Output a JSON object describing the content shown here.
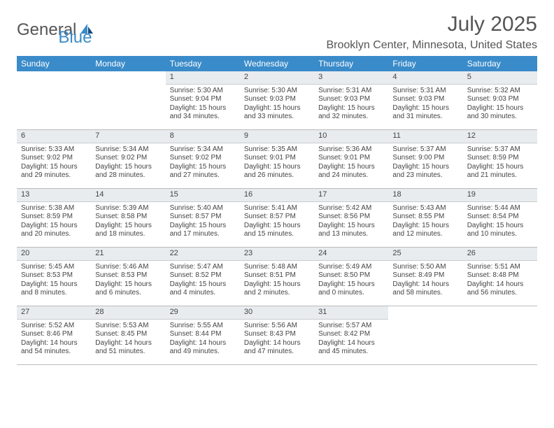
{
  "brand": {
    "text1": "General",
    "text2": "Blue",
    "color1": "#555555",
    "color2": "#3a8bc9"
  },
  "header": {
    "month_title": "July 2025",
    "location": "Brooklyn Center, Minnesota, United States"
  },
  "style": {
    "header_bg": "#3a8bc9",
    "header_fg": "#ffffff",
    "daynum_bg": "#e8ecef",
    "border_color": "#bbbbbb",
    "body_fontsize": 10,
    "title_fontsize": 30
  },
  "day_names": [
    "Sunday",
    "Monday",
    "Tuesday",
    "Wednesday",
    "Thursday",
    "Friday",
    "Saturday"
  ],
  "first_weekday_index": 2,
  "days": [
    {
      "n": 1,
      "sunrise": "5:30 AM",
      "sunset": "9:04 PM",
      "daylight": "15 hours and 34 minutes."
    },
    {
      "n": 2,
      "sunrise": "5:30 AM",
      "sunset": "9:03 PM",
      "daylight": "15 hours and 33 minutes."
    },
    {
      "n": 3,
      "sunrise": "5:31 AM",
      "sunset": "9:03 PM",
      "daylight": "15 hours and 32 minutes."
    },
    {
      "n": 4,
      "sunrise": "5:31 AM",
      "sunset": "9:03 PM",
      "daylight": "15 hours and 31 minutes."
    },
    {
      "n": 5,
      "sunrise": "5:32 AM",
      "sunset": "9:03 PM",
      "daylight": "15 hours and 30 minutes."
    },
    {
      "n": 6,
      "sunrise": "5:33 AM",
      "sunset": "9:02 PM",
      "daylight": "15 hours and 29 minutes."
    },
    {
      "n": 7,
      "sunrise": "5:34 AM",
      "sunset": "9:02 PM",
      "daylight": "15 hours and 28 minutes."
    },
    {
      "n": 8,
      "sunrise": "5:34 AM",
      "sunset": "9:02 PM",
      "daylight": "15 hours and 27 minutes."
    },
    {
      "n": 9,
      "sunrise": "5:35 AM",
      "sunset": "9:01 PM",
      "daylight": "15 hours and 26 minutes."
    },
    {
      "n": 10,
      "sunrise": "5:36 AM",
      "sunset": "9:01 PM",
      "daylight": "15 hours and 24 minutes."
    },
    {
      "n": 11,
      "sunrise": "5:37 AM",
      "sunset": "9:00 PM",
      "daylight": "15 hours and 23 minutes."
    },
    {
      "n": 12,
      "sunrise": "5:37 AM",
      "sunset": "8:59 PM",
      "daylight": "15 hours and 21 minutes."
    },
    {
      "n": 13,
      "sunrise": "5:38 AM",
      "sunset": "8:59 PM",
      "daylight": "15 hours and 20 minutes."
    },
    {
      "n": 14,
      "sunrise": "5:39 AM",
      "sunset": "8:58 PM",
      "daylight": "15 hours and 18 minutes."
    },
    {
      "n": 15,
      "sunrise": "5:40 AM",
      "sunset": "8:57 PM",
      "daylight": "15 hours and 17 minutes."
    },
    {
      "n": 16,
      "sunrise": "5:41 AM",
      "sunset": "8:57 PM",
      "daylight": "15 hours and 15 minutes."
    },
    {
      "n": 17,
      "sunrise": "5:42 AM",
      "sunset": "8:56 PM",
      "daylight": "15 hours and 13 minutes."
    },
    {
      "n": 18,
      "sunrise": "5:43 AM",
      "sunset": "8:55 PM",
      "daylight": "15 hours and 12 minutes."
    },
    {
      "n": 19,
      "sunrise": "5:44 AM",
      "sunset": "8:54 PM",
      "daylight": "15 hours and 10 minutes."
    },
    {
      "n": 20,
      "sunrise": "5:45 AM",
      "sunset": "8:53 PM",
      "daylight": "15 hours and 8 minutes."
    },
    {
      "n": 21,
      "sunrise": "5:46 AM",
      "sunset": "8:53 PM",
      "daylight": "15 hours and 6 minutes."
    },
    {
      "n": 22,
      "sunrise": "5:47 AM",
      "sunset": "8:52 PM",
      "daylight": "15 hours and 4 minutes."
    },
    {
      "n": 23,
      "sunrise": "5:48 AM",
      "sunset": "8:51 PM",
      "daylight": "15 hours and 2 minutes."
    },
    {
      "n": 24,
      "sunrise": "5:49 AM",
      "sunset": "8:50 PM",
      "daylight": "15 hours and 0 minutes."
    },
    {
      "n": 25,
      "sunrise": "5:50 AM",
      "sunset": "8:49 PM",
      "daylight": "14 hours and 58 minutes."
    },
    {
      "n": 26,
      "sunrise": "5:51 AM",
      "sunset": "8:48 PM",
      "daylight": "14 hours and 56 minutes."
    },
    {
      "n": 27,
      "sunrise": "5:52 AM",
      "sunset": "8:46 PM",
      "daylight": "14 hours and 54 minutes."
    },
    {
      "n": 28,
      "sunrise": "5:53 AM",
      "sunset": "8:45 PM",
      "daylight": "14 hours and 51 minutes."
    },
    {
      "n": 29,
      "sunrise": "5:55 AM",
      "sunset": "8:44 PM",
      "daylight": "14 hours and 49 minutes."
    },
    {
      "n": 30,
      "sunrise": "5:56 AM",
      "sunset": "8:43 PM",
      "daylight": "14 hours and 47 minutes."
    },
    {
      "n": 31,
      "sunrise": "5:57 AM",
      "sunset": "8:42 PM",
      "daylight": "14 hours and 45 minutes."
    }
  ],
  "labels": {
    "sunrise": "Sunrise:",
    "sunset": "Sunset:",
    "daylight": "Daylight:"
  }
}
